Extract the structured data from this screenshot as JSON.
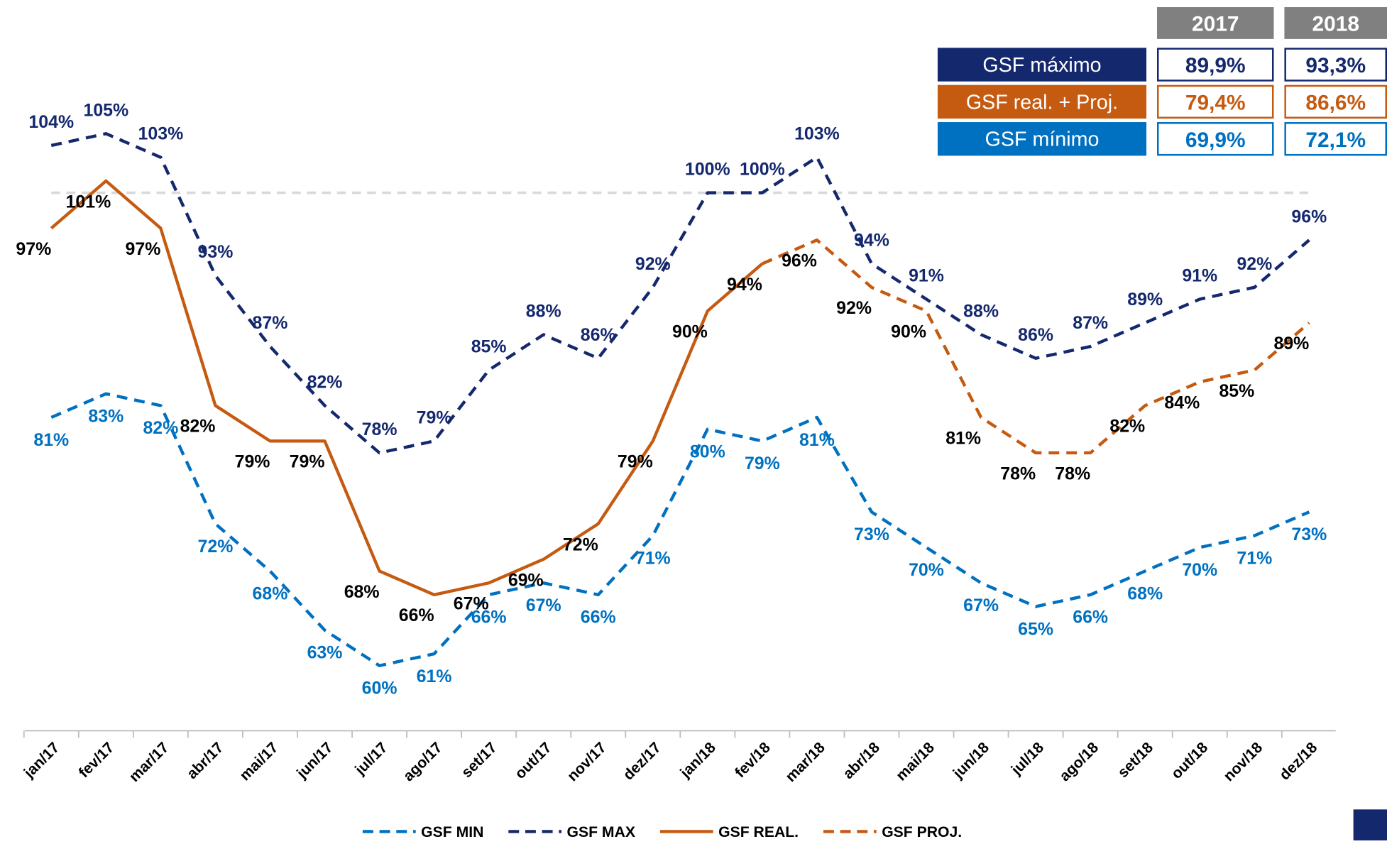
{
  "chart_data": {
    "type": "line",
    "categories": [
      "jan/17",
      "fev/17",
      "mar/17",
      "abr/17",
      "mai/17",
      "jun/17",
      "jul/17",
      "ago/17",
      "set/17",
      "out/17",
      "nov/17",
      "dez/17",
      "jan/18",
      "fev/18",
      "mar/18",
      "abr/18",
      "mai/18",
      "jun/18",
      "jul/18",
      "ago/18",
      "set/18",
      "out/18",
      "nov/18",
      "dez/18"
    ],
    "ylim": [
      54.5,
      116.3
    ],
    "reference_line": 100,
    "series": [
      {
        "name": "GSF MIN",
        "color": "#0070c0",
        "dash": true,
        "values": [
          81,
          83,
          82,
          72,
          68,
          63,
          60,
          61,
          66,
          67,
          66,
          71,
          80,
          79,
          81,
          73,
          70,
          67,
          65,
          66,
          68,
          70,
          71,
          73
        ],
        "value_labels": [
          "81%",
          "83%",
          "82%",
          "72%",
          "68%",
          "63%",
          "60%",
          "61%",
          "66%",
          "67%",
          "66%",
          "71%",
          "80%",
          "79%",
          "81%",
          "73%",
          "70%",
          "67%",
          "65%",
          "66%",
          "68%",
          "70%",
          "71%",
          "73%"
        ]
      },
      {
        "name": "GSF MAX",
        "color": "#14286e",
        "dash": true,
        "values": [
          104,
          105,
          103,
          93,
          87,
          82,
          78,
          79,
          85,
          88,
          86,
          92,
          100,
          100,
          103,
          94,
          91,
          88,
          86,
          87,
          89,
          91,
          92,
          96
        ],
        "value_labels": [
          "104%",
          "105%",
          "103%",
          "93%",
          "87%",
          "82%",
          "78%",
          "79%",
          "85%",
          "88%",
          "86%",
          "92%",
          "100%",
          "100%",
          "103%",
          "94%",
          "91%",
          "88%",
          "86%",
          "87%",
          "89%",
          "91%",
          "92%",
          "96%"
        ]
      },
      {
        "name": "GSF REAL.",
        "color": "#c55a11",
        "dash": false,
        "values": [
          97,
          101,
          97,
          82,
          79,
          79,
          68,
          66,
          67,
          69,
          72,
          79,
          90,
          94,
          null,
          null,
          null,
          null,
          null,
          null,
          null,
          null,
          null,
          null
        ],
        "value_labels": [
          "97%",
          "101%",
          "97%",
          "82%",
          "79%",
          "79%",
          "68%",
          "66%",
          "67%",
          "69%",
          "72%",
          "79%",
          "90%",
          "94%",
          null,
          null,
          null,
          null,
          null,
          null,
          null,
          null,
          null,
          null
        ]
      },
      {
        "name": "GSF PROJ.",
        "color": "#c55a11",
        "dash": true,
        "values": [
          null,
          null,
          null,
          null,
          null,
          null,
          null,
          null,
          null,
          null,
          null,
          null,
          null,
          94,
          96,
          92,
          90,
          81,
          78,
          78,
          82,
          84,
          85,
          89
        ],
        "value_labels": [
          null,
          null,
          null,
          null,
          null,
          null,
          null,
          null,
          null,
          null,
          null,
          null,
          null,
          null,
          "96%",
          "92%",
          "90%",
          "81%",
          "78%",
          "78%",
          "82%",
          "84%",
          "85%",
          "89%"
        ]
      }
    ],
    "table": {
      "columns": [
        "2017",
        "2018"
      ],
      "rows": [
        {
          "label": "GSF máximo",
          "color": "#14286e",
          "values": [
            "89,9%",
            "93,3%"
          ]
        },
        {
          "label": "GSF real. + Proj.",
          "color": "#c55a11",
          "values": [
            "79,4%",
            "86,6%"
          ]
        },
        {
          "label": "GSF mínimo",
          "color": "#0070c0",
          "values": [
            "69,9%",
            "72,1%"
          ]
        }
      ]
    }
  }
}
